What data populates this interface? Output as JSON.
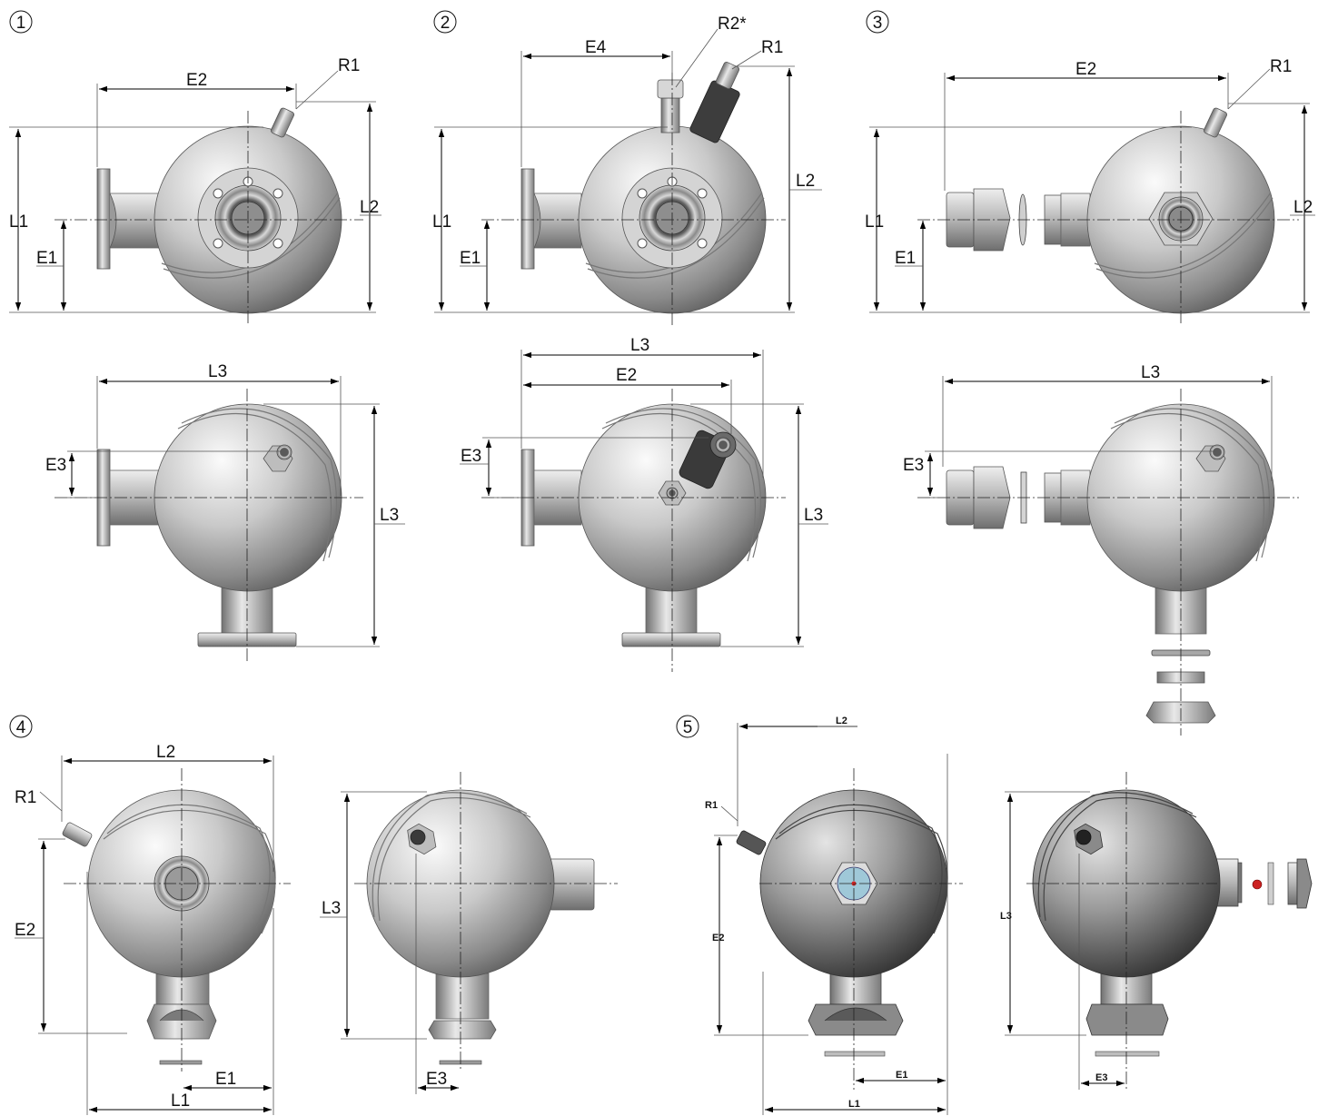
{
  "diagram": {
    "figure_numbers": [
      "1",
      "2",
      "3",
      "4",
      "5"
    ],
    "labels": {
      "L1": "L1",
      "L2": "L2",
      "L3": "L3",
      "E1": "E1",
      "E2": "E2",
      "E3": "E3",
      "E4": "E4",
      "R1": "R1",
      "R2": "R2*"
    }
  },
  "colors": {
    "sphere_light": "#f2f2f2",
    "sphere_dark": "#5a5a5a",
    "dark_sphere_light": "#d0d0d0",
    "dark_sphere_dark": "#2e2e2e",
    "seal_red": "#cc2222",
    "lens_blue": "#9fc8d8"
  }
}
